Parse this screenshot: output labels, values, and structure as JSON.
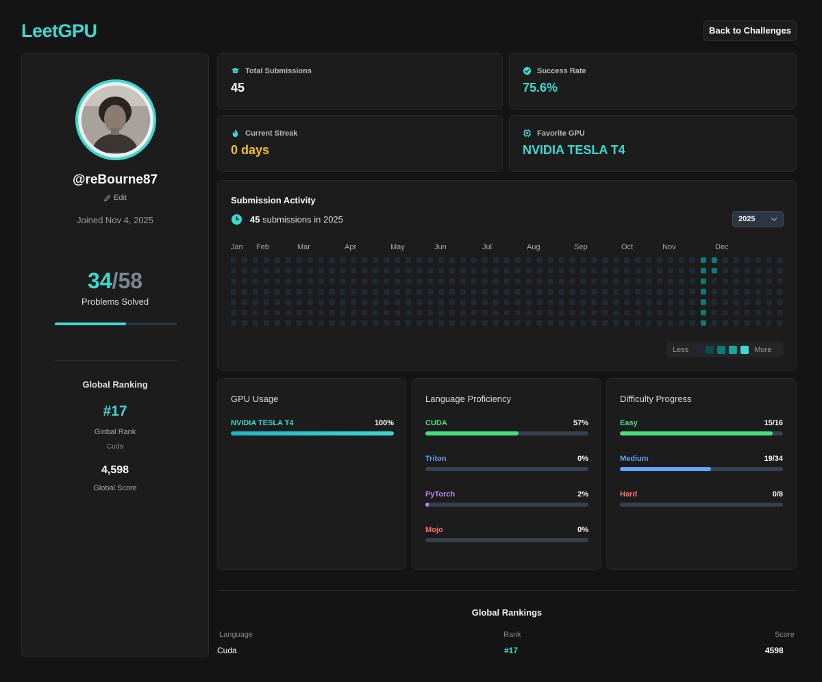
{
  "header": {
    "logo": "LeetGPU",
    "back_label": "Back to Challenges"
  },
  "profile": {
    "username": "@reBourne87",
    "edit_label": "Edit",
    "joined": "Joined Nov 4, 2025",
    "solved": "34",
    "total": "58",
    "solved_slash": "/",
    "solved_label": "Problems Solved",
    "solved_progress": 0.586,
    "ranking_title": "Global Ranking",
    "rank": "#17",
    "rank_label": "Global Rank",
    "rank_language": "Cuda",
    "score": "4,598",
    "score_label": "Global Score"
  },
  "stats": {
    "total_submissions": {
      "label": "Total Submissions",
      "value": "45"
    },
    "success_rate": {
      "label": "Success Rate",
      "value": "75.6%"
    },
    "current_streak": {
      "label": "Current Streak",
      "value": "0 days"
    },
    "favorite_gpu": {
      "label": "Favorite GPU",
      "value": "NVIDIA TESLA T4"
    }
  },
  "activity": {
    "title": "Submission Activity",
    "count": "45",
    "count_suffix": "submissions in 2025",
    "year": "2025",
    "months": [
      "Jan",
      "Feb",
      "Mar",
      "Apr",
      "May",
      "Jun",
      "Jul",
      "Aug",
      "Sep",
      "Oct",
      "Nov",
      "Dec"
    ],
    "weeks": 51,
    "active_cells": [
      [
        43,
        0
      ],
      [
        43,
        1
      ],
      [
        43,
        2
      ],
      [
        43,
        3
      ],
      [
        43,
        4
      ],
      [
        43,
        5
      ],
      [
        43,
        6
      ],
      [
        44,
        0
      ],
      [
        44,
        1
      ]
    ],
    "legend_less": "Less",
    "legend_more": "More",
    "colors": {
      "empty": "#1f2a36",
      "level1": "#0e4a52",
      "level2": "#0f7a7c",
      "level3": "#17a5a3",
      "level4": "#3dd9d0"
    }
  },
  "gpu_usage": {
    "title": "GPU Usage",
    "items": [
      {
        "name": "NVIDIA TESLA T4",
        "pct_label": "100%",
        "pct": 1.0
      }
    ]
  },
  "languages": {
    "title": "Language Proficiency",
    "items": [
      {
        "name": "CUDA",
        "pct_label": "57%",
        "pct": 0.57,
        "color": "#4ade80"
      },
      {
        "name": "Triton",
        "pct_label": "0%",
        "pct": 0,
        "color": "#60a5fa"
      },
      {
        "name": "PyTorch",
        "pct_label": "2%",
        "pct": 0.02,
        "color": "#c084fc"
      },
      {
        "name": "Mojo",
        "pct_label": "0%",
        "pct": 0,
        "color": "#f87171"
      }
    ]
  },
  "difficulty": {
    "title": "Difficulty Progress",
    "items": [
      {
        "name": "Easy",
        "label": "15/16",
        "pct": 0.9375,
        "color": "#4ade80"
      },
      {
        "name": "Medium",
        "label": "19/34",
        "pct": 0.5588,
        "color": "#60a5fa"
      },
      {
        "name": "Hard",
        "label": "0/8",
        "pct": 0,
        "color": "#f87171"
      }
    ]
  },
  "rankings": {
    "title": "Global Rankings",
    "headers": [
      "Language",
      "Rank",
      "Score"
    ],
    "rows": [
      {
        "language": "Cuda",
        "rank": "#17",
        "score": "4598"
      }
    ]
  },
  "accent": "#3dd9d0",
  "streak_color": "#fbbf24"
}
